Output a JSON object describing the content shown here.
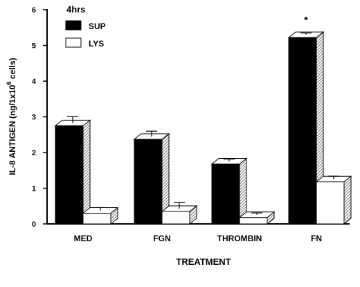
{
  "chart_data": {
    "type": "bar",
    "style": "3d-bar",
    "title": "4hrs",
    "xlabel": "TREATMENT",
    "ylabel": "IL-8  ANTIGEN  (ng/1x10",
    "ylabel_exponent": "6",
    "ylabel_suffix": "  cells)",
    "ylim": [
      0,
      6
    ],
    "yticks": [
      "0",
      "1",
      "2",
      "3",
      "4",
      "5",
      "6"
    ],
    "categories": [
      "MED",
      "FGN",
      "THROMBIN",
      "FN"
    ],
    "series": [
      {
        "name": "SUP",
        "values": [
          2.75,
          2.37,
          1.68,
          5.22
        ],
        "errors": [
          0.18,
          0.15,
          0.06,
          0.05
        ],
        "color": "#000000"
      },
      {
        "name": "LYS",
        "values": [
          0.3,
          0.35,
          0.18,
          1.18
        ],
        "errors": [
          0.08,
          0.17,
          0.05,
          0.08
        ],
        "color": "#ffffff"
      }
    ],
    "annotations": [
      {
        "category": "FN",
        "series": "SUP",
        "text": "*"
      }
    ],
    "legend_position": "top-left",
    "grid": false
  }
}
